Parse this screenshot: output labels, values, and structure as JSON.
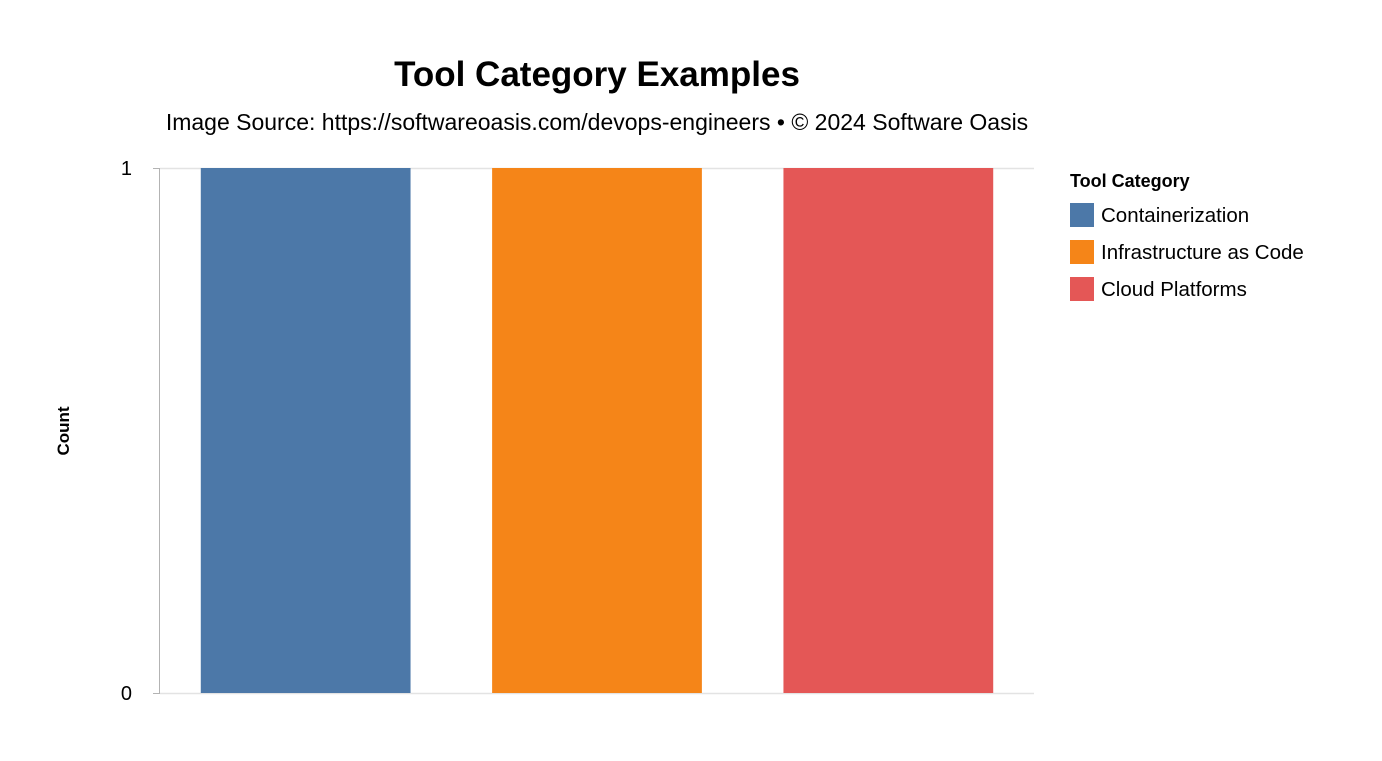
{
  "chart_data": {
    "type": "bar",
    "title": "Tool Category Examples",
    "subtitle": "Image Source: https://softwareoasis.com/devops-engineers • © 2024 Software Oasis",
    "xlabel": "",
    "ylabel": "Count",
    "ylim": [
      0,
      1
    ],
    "yticks": [
      "0",
      "1"
    ],
    "categories": [
      "Containerization",
      "Infrastructure as Code",
      "Cloud Platforms"
    ],
    "values": [
      1,
      1,
      1
    ],
    "colors": [
      "#4c78a8",
      "#f58518",
      "#e45756"
    ],
    "grid": true,
    "legend": {
      "title": "Tool Category",
      "placement": "right",
      "items": [
        "Containerization",
        "Infrastructure as Code",
        "Cloud Platforms"
      ]
    }
  }
}
